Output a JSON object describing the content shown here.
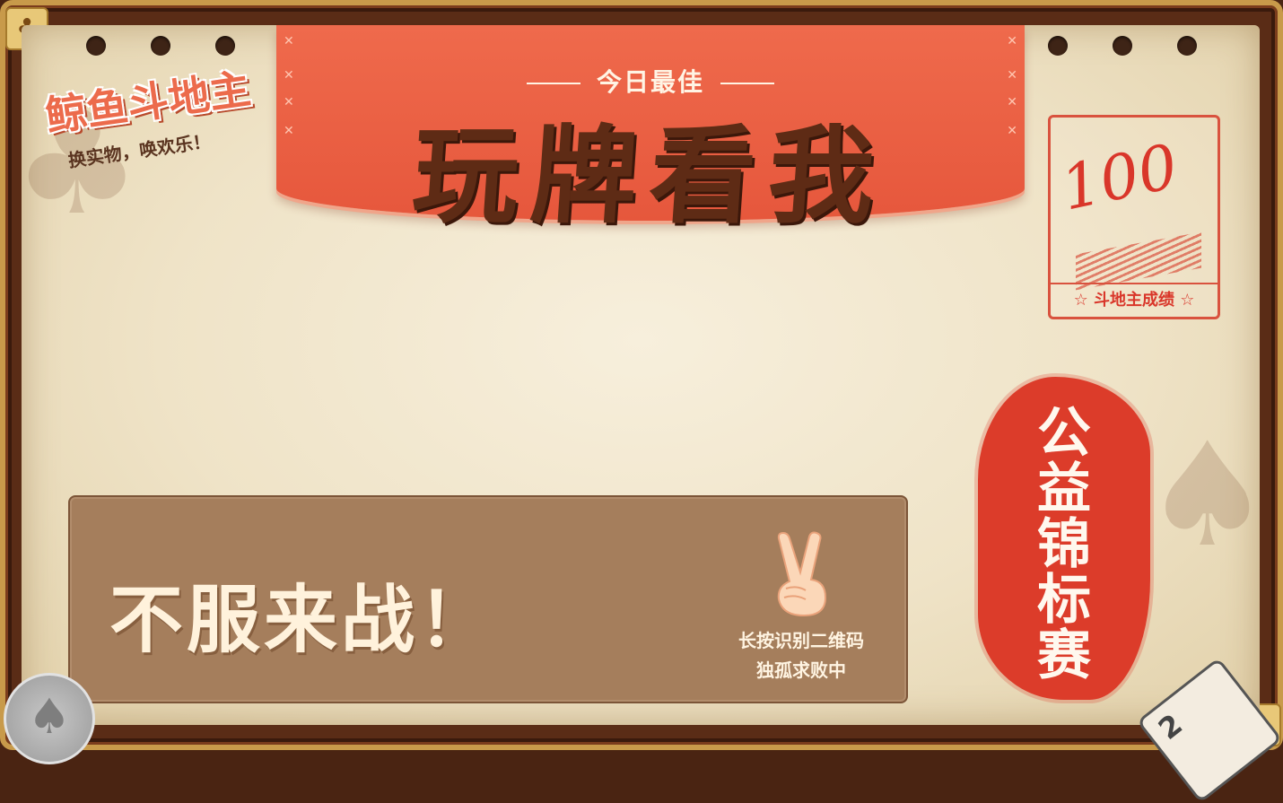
{
  "logo": {
    "title": "鲸鱼斗地主",
    "slogan": "换实物，唤欢乐！"
  },
  "banner": {
    "subtitle": "今日最佳",
    "headline": "玩牌看我"
  },
  "score_stamp": {
    "score": "100",
    "caption": "☆ 斗地主成绩 ☆"
  },
  "seal": {
    "text": "公益锦标赛"
  },
  "challenge": {
    "text": "不服来战！",
    "qr_line1": "长按识别二维码",
    "qr_line2": "独孤求败中"
  },
  "decor": {
    "corner_suit": "♣",
    "coin_suit": "♠",
    "card_rank": "2"
  },
  "colors": {
    "accent": "#e6573c",
    "brown": "#5e2b15",
    "panel": "#a57e5c",
    "seal": "#dc3c2a"
  }
}
